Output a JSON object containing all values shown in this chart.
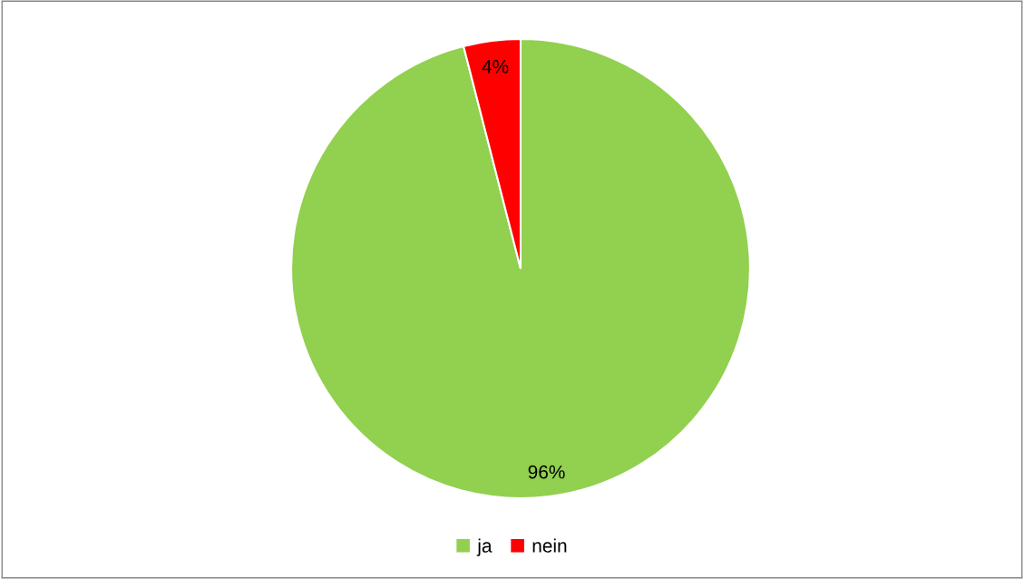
{
  "chart_data": {
    "type": "pie",
    "categories": [
      "ja",
      "nein"
    ],
    "values": [
      96,
      4
    ],
    "colors": [
      "#92d050",
      "#ff0000"
    ],
    "value_labels": [
      "96%",
      "4%"
    ],
    "legend": "bottom"
  }
}
